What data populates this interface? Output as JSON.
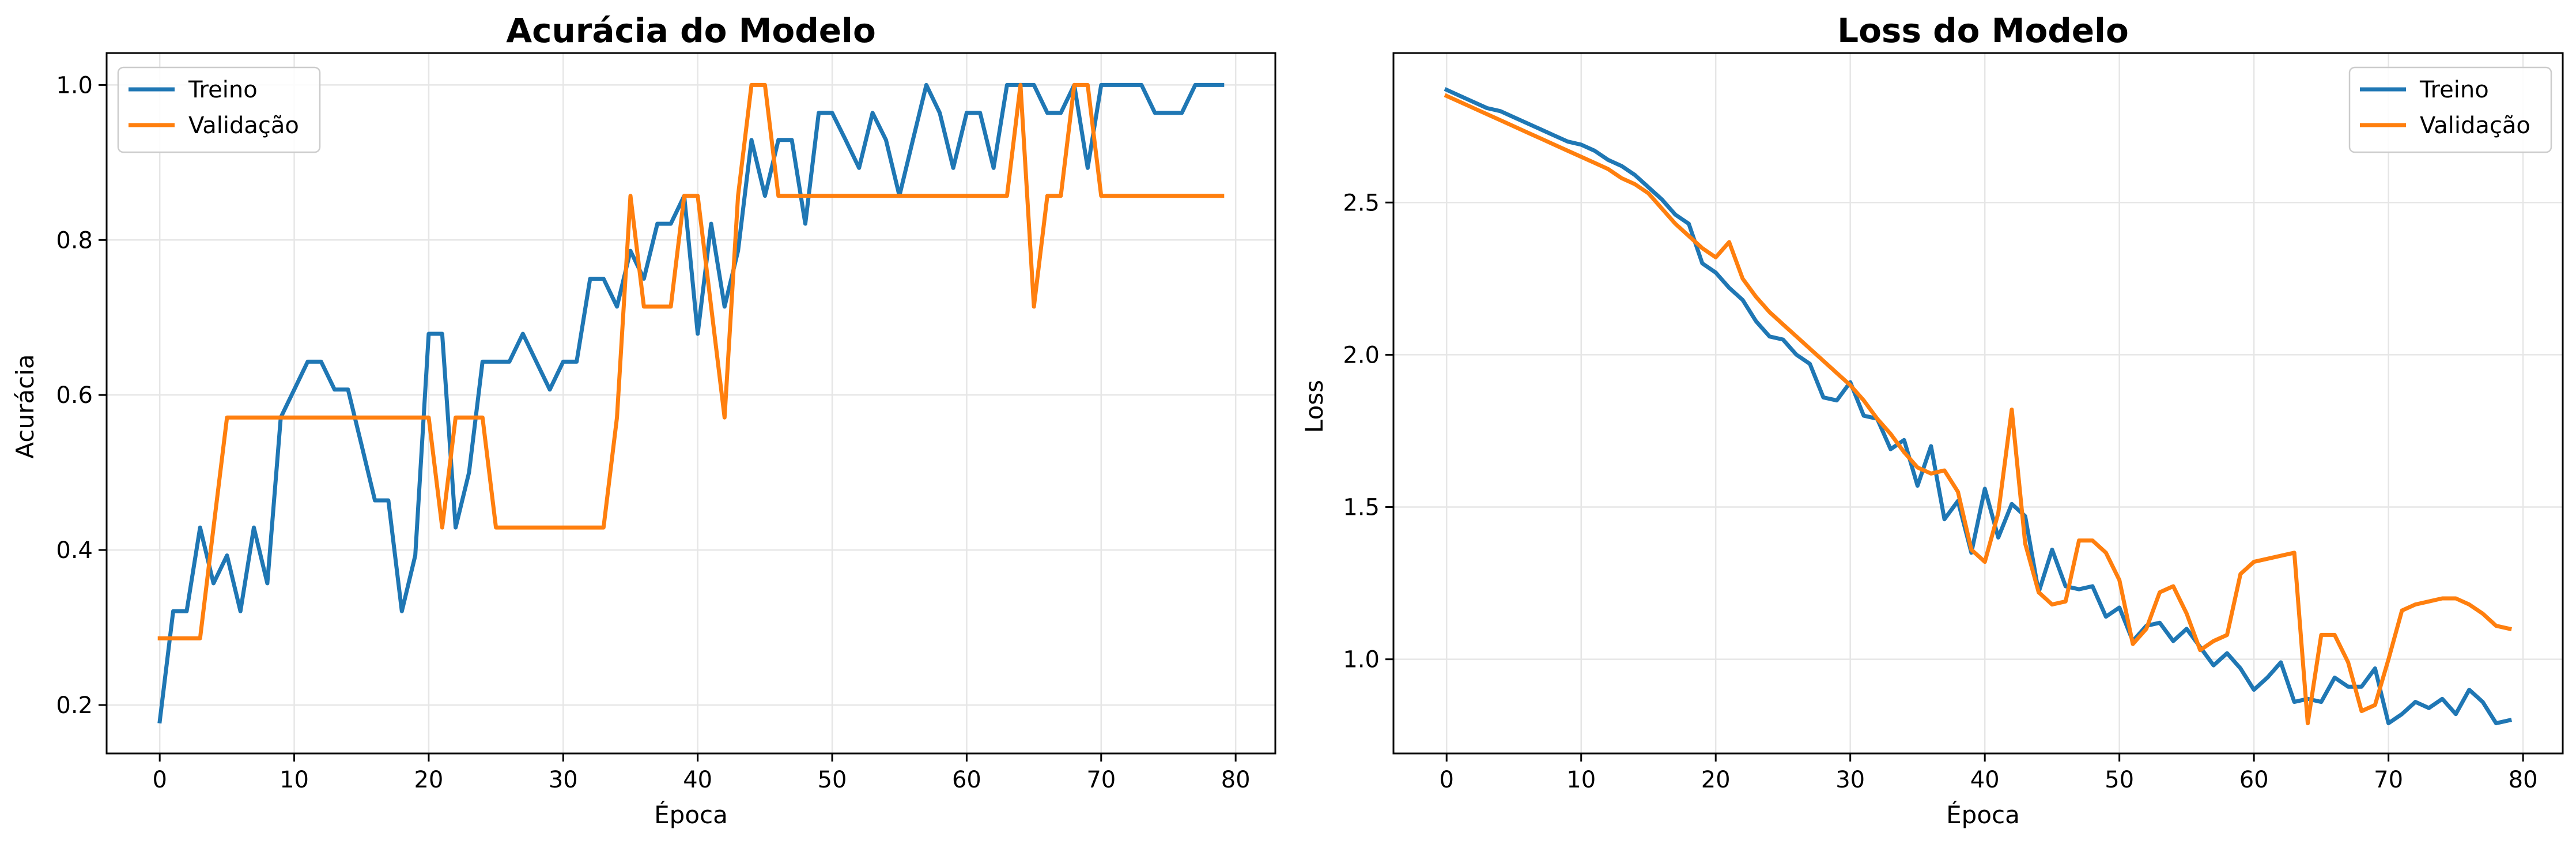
{
  "colors": {
    "treino": "#1f77b4",
    "validacao": "#ff7f0e",
    "grid": "#e6e6e6",
    "axis": "#000000"
  },
  "chart_data": [
    {
      "type": "line",
      "title": "Acurácia do Modelo",
      "xlabel": "Época",
      "ylabel": "Acurácia",
      "xlim": [
        -3.95,
        82.95
      ],
      "ylim": [
        0.1375,
        1.0412
      ],
      "xticks": [
        0,
        10,
        20,
        30,
        40,
        50,
        60,
        70,
        80
      ],
      "yticks": [
        0.2,
        0.4,
        0.6,
        0.8,
        1.0
      ],
      "ytick_labels": [
        "0.2",
        "0.4",
        "0.6",
        "0.8",
        "1.0"
      ],
      "grid": true,
      "legend_position": "top-left",
      "series": [
        {
          "name": "Treino",
          "color": "#1f77b4",
          "x": [
            0,
            1,
            2,
            3,
            4,
            5,
            6,
            7,
            8,
            9,
            10,
            11,
            12,
            13,
            14,
            15,
            16,
            17,
            18,
            19,
            20,
            21,
            22,
            23,
            24,
            25,
            26,
            27,
            28,
            29,
            30,
            31,
            32,
            33,
            34,
            35,
            36,
            37,
            38,
            39,
            40,
            41,
            42,
            43,
            44,
            45,
            46,
            47,
            48,
            49,
            50,
            51,
            52,
            53,
            54,
            55,
            56,
            57,
            58,
            59,
            60,
            61,
            62,
            63,
            64,
            65,
            66,
            67,
            68,
            69,
            70,
            71,
            72,
            73,
            74,
            75,
            76,
            77,
            78,
            79
          ],
          "values": [
            0.179,
            0.321,
            0.321,
            0.429,
            0.357,
            0.393,
            0.321,
            0.429,
            0.357,
            0.571,
            0.607,
            0.643,
            0.643,
            0.607,
            0.607,
            0.536,
            0.464,
            0.464,
            0.321,
            0.393,
            0.679,
            0.679,
            0.429,
            0.5,
            0.643,
            0.643,
            0.643,
            0.679,
            0.643,
            0.607,
            0.643,
            0.643,
            0.75,
            0.75,
            0.714,
            0.786,
            0.75,
            0.821,
            0.821,
            0.857,
            0.679,
            0.821,
            0.714,
            0.786,
            0.929,
            0.857,
            0.929,
            0.929,
            0.821,
            0.964,
            0.964,
            0.929,
            0.893,
            0.964,
            0.929,
            0.857,
            0.929,
            1.0,
            0.964,
            0.893,
            0.964,
            0.964,
            0.893,
            1.0,
            1.0,
            1.0,
            0.964,
            0.964,
            1.0,
            0.893,
            1.0,
            1.0,
            1.0,
            1.0,
            0.964,
            0.964,
            0.964,
            1.0,
            1.0,
            1.0
          ]
        },
        {
          "name": "Validação",
          "color": "#ff7f0e",
          "x": [
            0,
            1,
            2,
            3,
            4,
            5,
            6,
            7,
            8,
            9,
            10,
            11,
            12,
            13,
            14,
            15,
            16,
            17,
            18,
            19,
            20,
            21,
            22,
            23,
            24,
            25,
            26,
            27,
            28,
            29,
            30,
            31,
            32,
            33,
            34,
            35,
            36,
            37,
            38,
            39,
            40,
            41,
            42,
            43,
            44,
            45,
            46,
            47,
            48,
            49,
            50,
            51,
            52,
            53,
            54,
            55,
            56,
            57,
            58,
            59,
            60,
            61,
            62,
            63,
            64,
            65,
            66,
            67,
            68,
            69,
            70,
            71,
            72,
            73,
            74,
            75,
            76,
            77,
            78,
            79
          ],
          "values": [
            0.286,
            0.286,
            0.286,
            0.286,
            0.429,
            0.571,
            0.571,
            0.571,
            0.571,
            0.571,
            0.571,
            0.571,
            0.571,
            0.571,
            0.571,
            0.571,
            0.571,
            0.571,
            0.571,
            0.571,
            0.571,
            0.429,
            0.571,
            0.571,
            0.571,
            0.429,
            0.429,
            0.429,
            0.429,
            0.429,
            0.429,
            0.429,
            0.429,
            0.429,
            0.571,
            0.857,
            0.714,
            0.714,
            0.714,
            0.857,
            0.857,
            0.714,
            0.571,
            0.857,
            1.0,
            1.0,
            0.857,
            0.857,
            0.857,
            0.857,
            0.857,
            0.857,
            0.857,
            0.857,
            0.857,
            0.857,
            0.857,
            0.857,
            0.857,
            0.857,
            0.857,
            0.857,
            0.857,
            0.857,
            1.0,
            0.714,
            0.857,
            0.857,
            1.0,
            1.0,
            0.857,
            0.857,
            0.857,
            0.857,
            0.857,
            0.857,
            0.857,
            0.857,
            0.857,
            0.857
          ]
        }
      ]
    },
    {
      "type": "line",
      "title": "Loss do Modelo",
      "xlabel": "Época",
      "ylabel": "Loss",
      "xlim": [
        -3.95,
        82.95
      ],
      "ylim": [
        0.6908,
        2.9908
      ],
      "xticks": [
        0,
        10,
        20,
        30,
        40,
        50,
        60,
        70,
        80
      ],
      "yticks": [
        1.0,
        1.5,
        2.0,
        2.5
      ],
      "ytick_labels": [
        "1.0",
        "1.5",
        "2.0",
        "2.5"
      ],
      "grid": true,
      "legend_position": "top-right",
      "series": [
        {
          "name": "Treino",
          "color": "#1f77b4",
          "x": [
            0,
            1,
            2,
            3,
            4,
            5,
            6,
            7,
            8,
            9,
            10,
            11,
            12,
            13,
            14,
            15,
            16,
            17,
            18,
            19,
            20,
            21,
            22,
            23,
            24,
            25,
            26,
            27,
            28,
            29,
            30,
            31,
            32,
            33,
            34,
            35,
            36,
            37,
            38,
            39,
            40,
            41,
            42,
            43,
            44,
            45,
            46,
            47,
            48,
            49,
            50,
            51,
            52,
            53,
            54,
            55,
            56,
            57,
            58,
            59,
            60,
            61,
            62,
            63,
            64,
            65,
            66,
            67,
            68,
            69,
            70,
            71,
            72,
            73,
            74,
            75,
            76,
            77,
            78,
            79
          ],
          "values": [
            2.87,
            2.85,
            2.83,
            2.81,
            2.8,
            2.78,
            2.76,
            2.74,
            2.72,
            2.7,
            2.69,
            2.67,
            2.64,
            2.62,
            2.59,
            2.55,
            2.51,
            2.46,
            2.43,
            2.3,
            2.27,
            2.22,
            2.18,
            2.11,
            2.06,
            2.05,
            2.0,
            1.97,
            1.86,
            1.85,
            1.91,
            1.8,
            1.79,
            1.69,
            1.72,
            1.57,
            1.7,
            1.46,
            1.52,
            1.35,
            1.56,
            1.4,
            1.51,
            1.47,
            1.22,
            1.36,
            1.24,
            1.23,
            1.24,
            1.14,
            1.17,
            1.06,
            1.11,
            1.12,
            1.06,
            1.1,
            1.04,
            0.98,
            1.02,
            0.97,
            0.9,
            0.94,
            0.99,
            0.86,
            0.87,
            0.86,
            0.94,
            0.91,
            0.91,
            0.97,
            0.79,
            0.82,
            0.86,
            0.84,
            0.87,
            0.82,
            0.9,
            0.86,
            0.79,
            0.8
          ]
        },
        {
          "name": "Validação",
          "color": "#ff7f0e",
          "x": [
            0,
            1,
            2,
            3,
            4,
            5,
            6,
            7,
            8,
            9,
            10,
            11,
            12,
            13,
            14,
            15,
            16,
            17,
            18,
            19,
            20,
            21,
            22,
            23,
            24,
            25,
            26,
            27,
            28,
            29,
            30,
            31,
            32,
            33,
            34,
            35,
            36,
            37,
            38,
            39,
            40,
            41,
            42,
            43,
            44,
            45,
            46,
            47,
            48,
            49,
            50,
            51,
            52,
            53,
            54,
            55,
            56,
            57,
            58,
            59,
            60,
            61,
            62,
            63,
            64,
            65,
            66,
            67,
            68,
            69,
            70,
            71,
            72,
            73,
            74,
            75,
            76,
            77,
            78,
            79
          ],
          "values": [
            2.85,
            2.83,
            2.81,
            2.79,
            2.77,
            2.75,
            2.73,
            2.71,
            2.69,
            2.67,
            2.65,
            2.63,
            2.61,
            2.58,
            2.56,
            2.53,
            2.48,
            2.43,
            2.39,
            2.35,
            2.32,
            2.37,
            2.25,
            2.19,
            2.14,
            2.1,
            2.06,
            2.02,
            1.98,
            1.94,
            1.9,
            1.85,
            1.79,
            1.74,
            1.68,
            1.63,
            1.61,
            1.62,
            1.55,
            1.36,
            1.32,
            1.48,
            1.82,
            1.38,
            1.22,
            1.18,
            1.19,
            1.39,
            1.39,
            1.35,
            1.26,
            1.05,
            1.1,
            1.22,
            1.24,
            1.15,
            1.03,
            1.06,
            1.08,
            1.28,
            1.32,
            1.33,
            1.34,
            1.35,
            0.79,
            1.08,
            1.08,
            0.99,
            0.83,
            0.85,
            1.0,
            1.16,
            1.18,
            1.19,
            1.2,
            1.2,
            1.18,
            1.15,
            1.11,
            1.1
          ]
        }
      ]
    }
  ]
}
